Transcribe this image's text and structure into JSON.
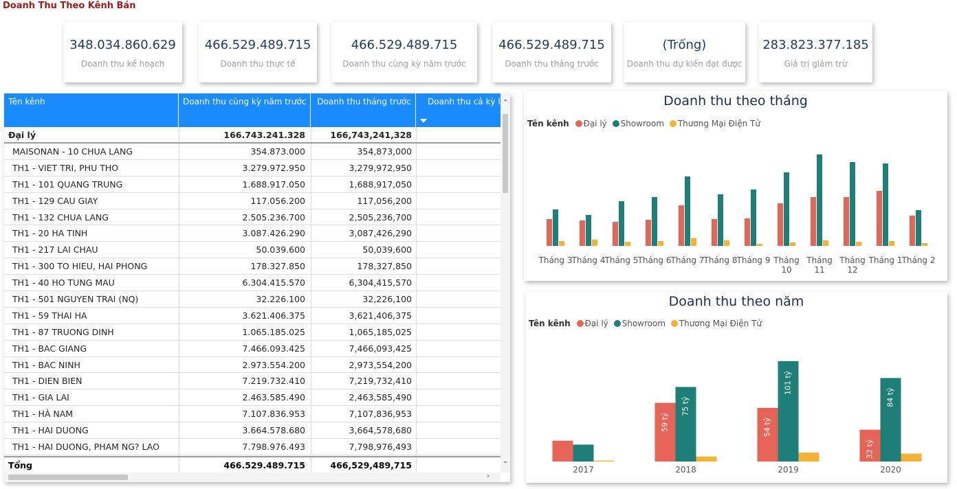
{
  "page": {
    "title": "Doanh Thu Theo Kênh Bán"
  },
  "colors": {
    "dai_ly": "#e66457",
    "showroom": "#1e7f78",
    "tmdt": "#f5b335",
    "header_blue": "#1a8cff"
  },
  "kpis": [
    {
      "value": "348.034.860.629",
      "label": "Doanh thu kế hoạch"
    },
    {
      "value": "466.529.489.715",
      "label": "Doanh thu thực tế"
    },
    {
      "value": "466.529.489.715",
      "label": "Doanh thu cùng kỳ năm trước"
    },
    {
      "value": "466.529.489.715",
      "label": "Doanh thu tháng trước"
    },
    {
      "value": "(Trống)",
      "label": "Doanh thu dự kiến đạt được"
    },
    {
      "value": "283.823.377.185",
      "label": "Giá trị giảm trừ"
    }
  ],
  "table": {
    "headers": [
      "Tên kênh",
      "Doanh thu cùng kỳ năm trước",
      "Doanh thu tháng trước",
      "Doanh thu cả kỳ liền"
    ],
    "group": {
      "name": "Đại lý",
      "prev_year": "166.743.241.328",
      "prev_month": "166,743,241,328"
    },
    "rows": [
      {
        "name": "MAISONAN - 10 CHUA LANG",
        "prev_year": "354.873.000",
        "prev_month": "354,873,000"
      },
      {
        "name": "TH1 - VIET TRI, PHU THO",
        "prev_year": "3.279.972.950",
        "prev_month": "3,279,972,950"
      },
      {
        "name": "TH1 - 101 QUANG TRUNG",
        "prev_year": "1.688.917.050",
        "prev_month": "1,688,917,050"
      },
      {
        "name": "TH1 - 129 CAU GIAY",
        "prev_year": "117.056.200",
        "prev_month": "117,056,200"
      },
      {
        "name": "TH1 - 132 CHUA LANG",
        "prev_year": "2.505.236.700",
        "prev_month": "2,505,236,700"
      },
      {
        "name": "TH1 - 20 HA TINH",
        "prev_year": "3.087.426.290",
        "prev_month": "3,087,426,290"
      },
      {
        "name": "TH1 - 217 LAI CHAU",
        "prev_year": "50.039.600",
        "prev_month": "50,039,600"
      },
      {
        "name": "TH1 - 300 TO HIEU, HAI PHONG",
        "prev_year": "178.327.850",
        "prev_month": "178,327,850"
      },
      {
        "name": "TH1 - 40 HO TUNG MAU",
        "prev_year": "6.304.415.570",
        "prev_month": "6,304,415,570"
      },
      {
        "name": "TH1 - 501 NGUYEN TRAI (NQ)",
        "prev_year": "32.226.100",
        "prev_month": "32,226,100"
      },
      {
        "name": "TH1 - 59 THAI HA",
        "prev_year": "3.621.406.375",
        "prev_month": "3,621,406,375"
      },
      {
        "name": "TH1 - 87 TRUONG DINH",
        "prev_year": "1.065.185.025",
        "prev_month": "1,065,185,025"
      },
      {
        "name": "TH1 - BAC GIANG",
        "prev_year": "7.466.093.425",
        "prev_month": "7,466,093,425"
      },
      {
        "name": "TH1 - BAC NINH",
        "prev_year": "2.973.554.200",
        "prev_month": "2,973,554,200"
      },
      {
        "name": "TH1 - DIEN BIEN",
        "prev_year": "7.219.732.410",
        "prev_month": "7,219,732,410"
      },
      {
        "name": "TH1 - GIA LAI",
        "prev_year": "2.463.585.490",
        "prev_month": "2,463,585,490"
      },
      {
        "name": "TH1 - HÀ NAM",
        "prev_year": "7.107.836.953",
        "prev_month": "7,107,836,953"
      },
      {
        "name": "TH1 - HAI DUONG",
        "prev_year": "3.664.578.680",
        "prev_month": "3,664,578,680"
      },
      {
        "name": "TH1 - HAI DUONG, PHAM NG? LAO",
        "prev_year": "7.798.976.493",
        "prev_month": "7,798,976,493"
      }
    ],
    "total": {
      "name": "Tổng",
      "prev_year": "466.529.489.715",
      "prev_month": "466,529,489,715"
    }
  },
  "chart_data": [
    {
      "type": "bar",
      "title": "Doanh thu theo tháng",
      "legend_title": "Tên kênh",
      "categories": [
        "Tháng 3",
        "Tháng 4",
        "Tháng 5",
        "Tháng 6",
        "Tháng 7",
        "Tháng 8",
        "Tháng 9",
        "Tháng 10",
        "Tháng 11",
        "Tháng 12",
        "Tháng 1",
        "Tháng 2"
      ],
      "series": [
        {
          "name": "Đại lý",
          "values": [
            3.9,
            3.7,
            3.5,
            3.8,
            5.9,
            3.9,
            4.0,
            6.2,
            7.1,
            7.1,
            8.0,
            4.4
          ]
        },
        {
          "name": "Showroom",
          "values": [
            5.3,
            4.5,
            6.5,
            7.1,
            10.1,
            7.5,
            8.2,
            10.7,
            13.3,
            12.2,
            12.0,
            5.2
          ]
        },
        {
          "name": "Thương Mại Điện Tử",
          "values": [
            0.7,
            0.9,
            0.6,
            0.7,
            1.1,
            0.8,
            0.3,
            0.5,
            0.8,
            0.6,
            0.7,
            0.4
          ]
        }
      ],
      "ylim": [
        0,
        14
      ]
    },
    {
      "type": "bar",
      "title": "Doanh thu theo năm",
      "legend_title": "Tên kênh",
      "categories": [
        "2017",
        "2018",
        "2019",
        "2020"
      ],
      "series": [
        {
          "name": "Đại lý",
          "values": [
            21,
            59,
            54,
            32
          ],
          "labels": [
            "",
            "59 tỷ",
            "54 tỷ",
            "32 tỷ"
          ]
        },
        {
          "name": "Showroom",
          "values": [
            17,
            75,
            101,
            84
          ],
          "labels": [
            "",
            "75 tỷ",
            "101 tỷ",
            "84 tỷ"
          ]
        },
        {
          "name": "Thương Mại Điện Tử",
          "values": [
            1,
            5,
            9,
            8
          ],
          "labels": [
            "",
            "",
            "",
            ""
          ]
        }
      ],
      "ylim": [
        0,
        105
      ]
    }
  ]
}
